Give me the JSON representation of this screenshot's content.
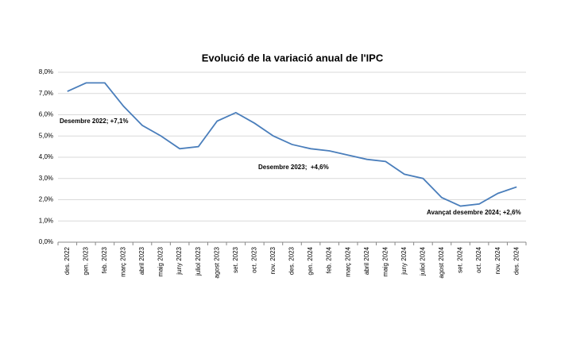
{
  "chart_data": {
    "type": "line",
    "title": "Evolució de la variació anual de l'IPC",
    "categories": [
      "des. 2022",
      "gen. 2023",
      "feb. 2023",
      "març 2023",
      "abril 2023",
      "maig 2023",
      "juny 2023",
      "juliol 2023",
      "agost 2023",
      "set. 2023",
      "oct. 2023",
      "nov. 2023",
      "des. 2023",
      "gen. 2024",
      "feb. 2024",
      "març 2024",
      "abril 2024",
      "maig 2024",
      "juny 2024",
      "juliol 2024",
      "agost 2024",
      "set. 2024",
      "oct. 2024",
      "nov. 2024",
      "des. 2024"
    ],
    "series": [
      {
        "name": "IPC",
        "color": "#4a7ebb",
        "values": [
          7.1,
          7.5,
          7.5,
          6.4,
          5.5,
          5.0,
          4.4,
          4.5,
          5.7,
          6.1,
          5.6,
          5.0,
          4.6,
          4.4,
          4.3,
          4.1,
          3.9,
          3.8,
          3.2,
          3.0,
          2.1,
          1.7,
          1.8,
          2.3,
          2.6
        ]
      }
    ],
    "ylim": [
      0,
      8
    ],
    "yticks": [
      {
        "value": 0,
        "label": "0,0%"
      },
      {
        "value": 1,
        "label": "1,0%"
      },
      {
        "value": 2,
        "label": "2,0%"
      },
      {
        "value": 3,
        "label": "3,0%"
      },
      {
        "value": 4,
        "label": "4,0%"
      },
      {
        "value": 5,
        "label": "5,0%"
      },
      {
        "value": 6,
        "label": "6,0%"
      },
      {
        "value": 7,
        "label": "7,0%"
      },
      {
        "value": 8,
        "label": "8,0%"
      }
    ],
    "grid": true,
    "annotations": [
      "Desembre 2022; +7,1%",
      "Desembre 2023;  +4,6%",
      "Avançat desembre 2024; +2,6%"
    ]
  }
}
